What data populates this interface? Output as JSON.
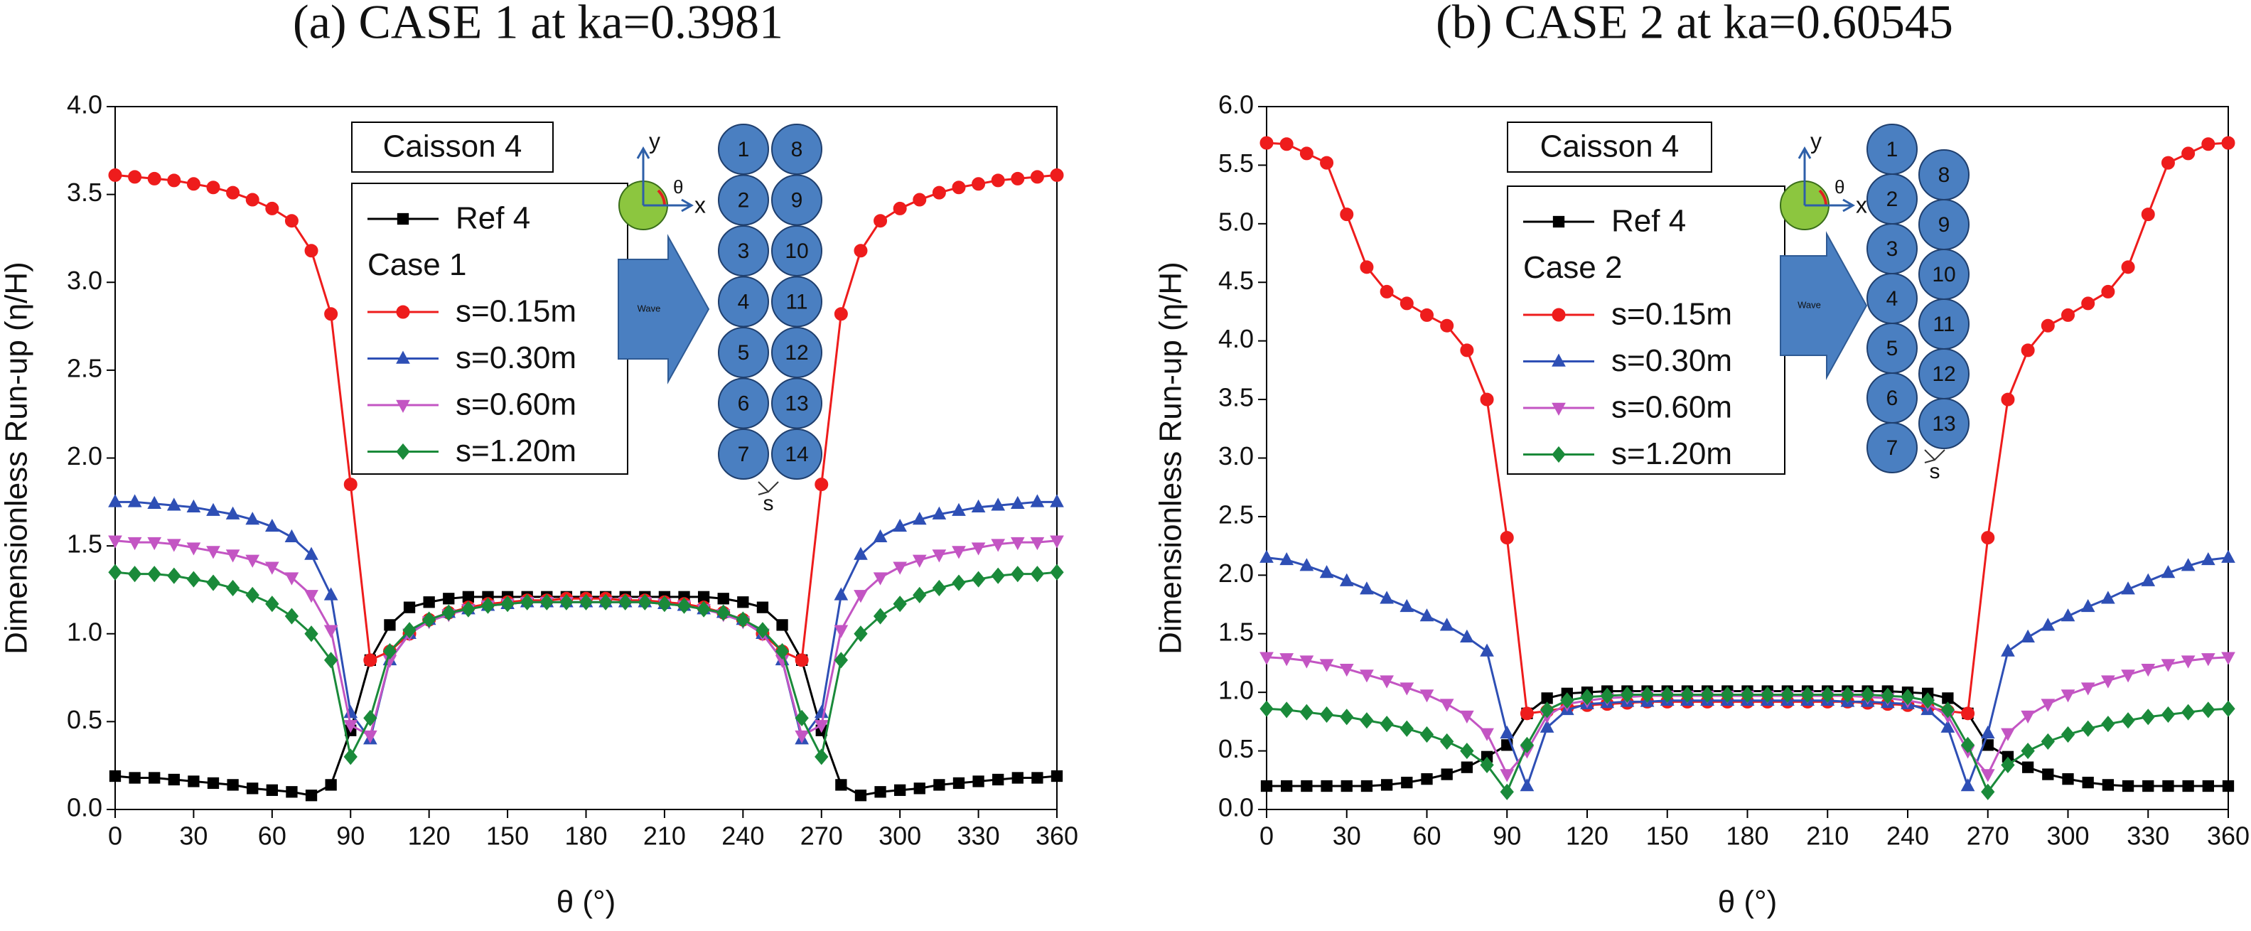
{
  "chart_data": [
    {
      "type": "line",
      "title": "(a) CASE 1 at ka=0.3981",
      "x_label": "θ (°)",
      "y_label": "Dimensionless Run-up (η/H)",
      "annotation": "Caisson 4",
      "legend_heading": "Case 1",
      "inset": {
        "axis_labels": [
          "y",
          "θ",
          "x"
        ],
        "arrow_label": "Wave",
        "circle_labels": [
          "1",
          "2",
          "3",
          "4",
          "5",
          "6",
          "7",
          "8",
          "9",
          "10",
          "11",
          "12",
          "13",
          "14"
        ],
        "gap_label": "s"
      },
      "xlim": [
        0,
        360
      ],
      "xticks": [
        0,
        30,
        60,
        90,
        120,
        150,
        180,
        210,
        240,
        270,
        300,
        330,
        360
      ],
      "ylim": [
        0,
        4
      ],
      "yticks": [
        {
          "value": 0,
          "label": "0.0"
        },
        0.5,
        {
          "value": 1,
          "label": "1.0"
        },
        1.5,
        {
          "value": 2,
          "label": "2.0"
        },
        2.5,
        {
          "value": 3,
          "label": "3.0"
        },
        3.5,
        {
          "value": 4,
          "label": "4.0"
        }
      ],
      "x": [
        0,
        7.5,
        15,
        22.5,
        30,
        37.5,
        45,
        52.5,
        60,
        67.5,
        75,
        82.5,
        90,
        97.5,
        105,
        112.5,
        120,
        127.5,
        135,
        142.5,
        150,
        157.5,
        165,
        172.5,
        180,
        187.5,
        195,
        202.5,
        210,
        217.5,
        225,
        232.5,
        240,
        247.5,
        255,
        262.5,
        270,
        277.5,
        285,
        292.5,
        300,
        307.5,
        315,
        322.5,
        330,
        337.5,
        345,
        352.5,
        360
      ],
      "series": [
        {
          "name": "Ref 4",
          "color": "#000000",
          "marker": "square",
          "values": [
            0.19,
            0.18,
            0.18,
            0.17,
            0.16,
            0.15,
            0.14,
            0.12,
            0.11,
            0.1,
            0.08,
            0.14,
            0.45,
            0.85,
            1.05,
            1.15,
            1.18,
            1.2,
            1.21,
            1.21,
            1.21,
            1.21,
            1.21,
            1.21,
            1.21,
            1.21,
            1.21,
            1.21,
            1.21,
            1.21,
            1.21,
            1.2,
            1.18,
            1.15,
            1.05,
            0.85,
            0.45,
            0.14,
            0.08,
            0.1,
            0.11,
            0.12,
            0.14,
            0.15,
            0.16,
            0.17,
            0.18,
            0.18,
            0.19
          ]
        },
        {
          "name": "s=0.15m",
          "color": "#ee1c1c",
          "marker": "circle",
          "values": [
            3.61,
            3.6,
            3.59,
            3.58,
            3.56,
            3.54,
            3.51,
            3.47,
            3.42,
            3.35,
            3.18,
            2.82,
            1.85,
            0.85,
            0.9,
            1.0,
            1.08,
            1.12,
            1.15,
            1.17,
            1.18,
            1.19,
            1.19,
            1.2,
            1.2,
            1.2,
            1.19,
            1.19,
            1.18,
            1.17,
            1.15,
            1.12,
            1.08,
            1.0,
            0.9,
            0.85,
            1.85,
            2.82,
            3.18,
            3.35,
            3.42,
            3.47,
            3.51,
            3.54,
            3.56,
            3.58,
            3.59,
            3.6,
            3.61
          ]
        },
        {
          "name": "s=0.30m",
          "color": "#2e4fb5",
          "marker": "triangle-up",
          "values": [
            1.75,
            1.75,
            1.74,
            1.73,
            1.72,
            1.7,
            1.68,
            1.65,
            1.61,
            1.55,
            1.45,
            1.22,
            0.55,
            0.4,
            0.85,
            1.0,
            1.08,
            1.12,
            1.14,
            1.16,
            1.17,
            1.18,
            1.18,
            1.18,
            1.18,
            1.18,
            1.18,
            1.18,
            1.17,
            1.16,
            1.14,
            1.12,
            1.08,
            1.0,
            0.85,
            0.4,
            0.55,
            1.22,
            1.45,
            1.55,
            1.61,
            1.65,
            1.68,
            1.7,
            1.72,
            1.73,
            1.74,
            1.75,
            1.75
          ]
        },
        {
          "name": "s=0.60m",
          "color": "#c355c3",
          "marker": "triangle-down",
          "values": [
            1.53,
            1.52,
            1.52,
            1.51,
            1.49,
            1.47,
            1.45,
            1.42,
            1.38,
            1.32,
            1.22,
            1.02,
            0.48,
            0.42,
            0.85,
            1.0,
            1.07,
            1.11,
            1.14,
            1.16,
            1.17,
            1.18,
            1.18,
            1.18,
            1.18,
            1.18,
            1.18,
            1.18,
            1.17,
            1.16,
            1.14,
            1.11,
            1.07,
            1.0,
            0.85,
            0.42,
            0.48,
            1.02,
            1.22,
            1.32,
            1.38,
            1.42,
            1.45,
            1.47,
            1.49,
            1.51,
            1.52,
            1.52,
            1.53
          ]
        },
        {
          "name": "s=1.20m",
          "color": "#1a8a3a",
          "marker": "diamond",
          "values": [
            1.35,
            1.34,
            1.34,
            1.33,
            1.31,
            1.29,
            1.26,
            1.22,
            1.17,
            1.1,
            1.0,
            0.85,
            0.3,
            0.52,
            0.9,
            1.02,
            1.08,
            1.12,
            1.14,
            1.16,
            1.17,
            1.18,
            1.18,
            1.18,
            1.18,
            1.18,
            1.18,
            1.18,
            1.17,
            1.16,
            1.14,
            1.12,
            1.08,
            1.02,
            0.9,
            0.52,
            0.3,
            0.85,
            1.0,
            1.1,
            1.17,
            1.22,
            1.26,
            1.29,
            1.31,
            1.33,
            1.34,
            1.34,
            1.35
          ]
        }
      ]
    },
    {
      "type": "line",
      "title": "(b) CASE 2 at ka=0.60545",
      "x_label": "θ (°)",
      "y_label": "Dimensionless Run-up (η/H)",
      "annotation": "Caisson 4",
      "legend_heading": "Case 2",
      "inset": {
        "axis_labels": [
          "y",
          "θ",
          "x"
        ],
        "arrow_label": "Wave",
        "circle_labels": [
          "1",
          "2",
          "3",
          "4",
          "5",
          "6",
          "7",
          "8",
          "9",
          "10",
          "11",
          "12",
          "13"
        ],
        "gap_label": "s"
      },
      "xlim": [
        0,
        360
      ],
      "xticks": [
        0,
        30,
        60,
        90,
        120,
        150,
        180,
        210,
        240,
        270,
        300,
        330,
        360
      ],
      "ylim": [
        0,
        6
      ],
      "yticks": [
        {
          "value": 0,
          "label": "0.0"
        },
        0.5,
        {
          "value": 1,
          "label": "1.0"
        },
        1.5,
        {
          "value": 2,
          "label": "2.0"
        },
        2.5,
        {
          "value": 3,
          "label": "3.0"
        },
        3.5,
        {
          "value": 4,
          "label": "4.0"
        },
        4.5,
        {
          "value": 5,
          "label": "5.0"
        },
        5.5,
        {
          "value": 6,
          "label": "6.0"
        }
      ],
      "x": [
        0,
        7.5,
        15,
        22.5,
        30,
        37.5,
        45,
        52.5,
        60,
        67.5,
        75,
        82.5,
        90,
        97.5,
        105,
        112.5,
        120,
        127.5,
        135,
        142.5,
        150,
        157.5,
        165,
        172.5,
        180,
        187.5,
        195,
        202.5,
        210,
        217.5,
        225,
        232.5,
        240,
        247.5,
        255,
        262.5,
        270,
        277.5,
        285,
        292.5,
        300,
        307.5,
        315,
        322.5,
        330,
        337.5,
        345,
        352.5,
        360
      ],
      "series": [
        {
          "name": "Ref 4",
          "color": "#000000",
          "marker": "square",
          "values": [
            0.2,
            0.2,
            0.2,
            0.2,
            0.2,
            0.2,
            0.21,
            0.23,
            0.26,
            0.3,
            0.36,
            0.45,
            0.55,
            0.82,
            0.95,
            0.99,
            1.0,
            1.01,
            1.01,
            1.01,
            1.01,
            1.01,
            1.01,
            1.01,
            1.01,
            1.01,
            1.01,
            1.01,
            1.01,
            1.01,
            1.01,
            1.01,
            1.0,
            0.99,
            0.95,
            0.82,
            0.55,
            0.45,
            0.36,
            0.3,
            0.26,
            0.23,
            0.21,
            0.2,
            0.2,
            0.2,
            0.2,
            0.2,
            0.2
          ]
        },
        {
          "name": "s=0.15m",
          "color": "#ee1c1c",
          "marker": "circle",
          "values": [
            5.69,
            5.68,
            5.6,
            5.52,
            5.08,
            4.63,
            4.42,
            4.32,
            4.22,
            4.13,
            3.92,
            3.5,
            2.32,
            0.82,
            0.84,
            0.87,
            0.89,
            0.9,
            0.91,
            0.92,
            0.92,
            0.92,
            0.92,
            0.92,
            0.92,
            0.92,
            0.92,
            0.92,
            0.92,
            0.92,
            0.91,
            0.9,
            0.89,
            0.87,
            0.84,
            0.82,
            2.32,
            3.5,
            3.92,
            4.13,
            4.22,
            4.32,
            4.42,
            4.63,
            5.08,
            5.52,
            5.6,
            5.68,
            5.69
          ]
        },
        {
          "name": "s=0.30m",
          "color": "#2e4fb5",
          "marker": "triangle-up",
          "values": [
            2.15,
            2.13,
            2.08,
            2.02,
            1.95,
            1.88,
            1.8,
            1.73,
            1.65,
            1.57,
            1.47,
            1.35,
            0.65,
            0.2,
            0.7,
            0.85,
            0.9,
            0.91,
            0.92,
            0.92,
            0.93,
            0.93,
            0.93,
            0.93,
            0.93,
            0.93,
            0.93,
            0.93,
            0.93,
            0.92,
            0.92,
            0.91,
            0.9,
            0.85,
            0.7,
            0.2,
            0.65,
            1.35,
            1.47,
            1.57,
            1.65,
            1.73,
            1.8,
            1.88,
            1.95,
            2.02,
            2.08,
            2.13,
            2.15
          ]
        },
        {
          "name": "s=0.60m",
          "color": "#c355c3",
          "marker": "triangle-down",
          "values": [
            1.3,
            1.29,
            1.27,
            1.24,
            1.2,
            1.15,
            1.1,
            1.04,
            0.98,
            0.9,
            0.8,
            0.65,
            0.3,
            0.5,
            0.8,
            0.9,
            0.93,
            0.95,
            0.96,
            0.97,
            0.97,
            0.97,
            0.97,
            0.97,
            0.97,
            0.97,
            0.97,
            0.97,
            0.97,
            0.97,
            0.96,
            0.95,
            0.93,
            0.9,
            0.8,
            0.5,
            0.3,
            0.65,
            0.8,
            0.9,
            0.98,
            1.04,
            1.1,
            1.15,
            1.2,
            1.24,
            1.27,
            1.29,
            1.3
          ]
        },
        {
          "name": "s=1.20m",
          "color": "#1a8a3a",
          "marker": "diamond",
          "values": [
            0.86,
            0.85,
            0.83,
            0.81,
            0.79,
            0.76,
            0.73,
            0.69,
            0.64,
            0.58,
            0.5,
            0.38,
            0.15,
            0.55,
            0.85,
            0.93,
            0.96,
            0.97,
            0.98,
            0.98,
            0.98,
            0.98,
            0.98,
            0.98,
            0.98,
            0.98,
            0.98,
            0.98,
            0.98,
            0.98,
            0.98,
            0.97,
            0.96,
            0.93,
            0.85,
            0.55,
            0.15,
            0.38,
            0.5,
            0.58,
            0.64,
            0.69,
            0.73,
            0.76,
            0.79,
            0.81,
            0.83,
            0.85,
            0.86
          ]
        }
      ]
    }
  ]
}
